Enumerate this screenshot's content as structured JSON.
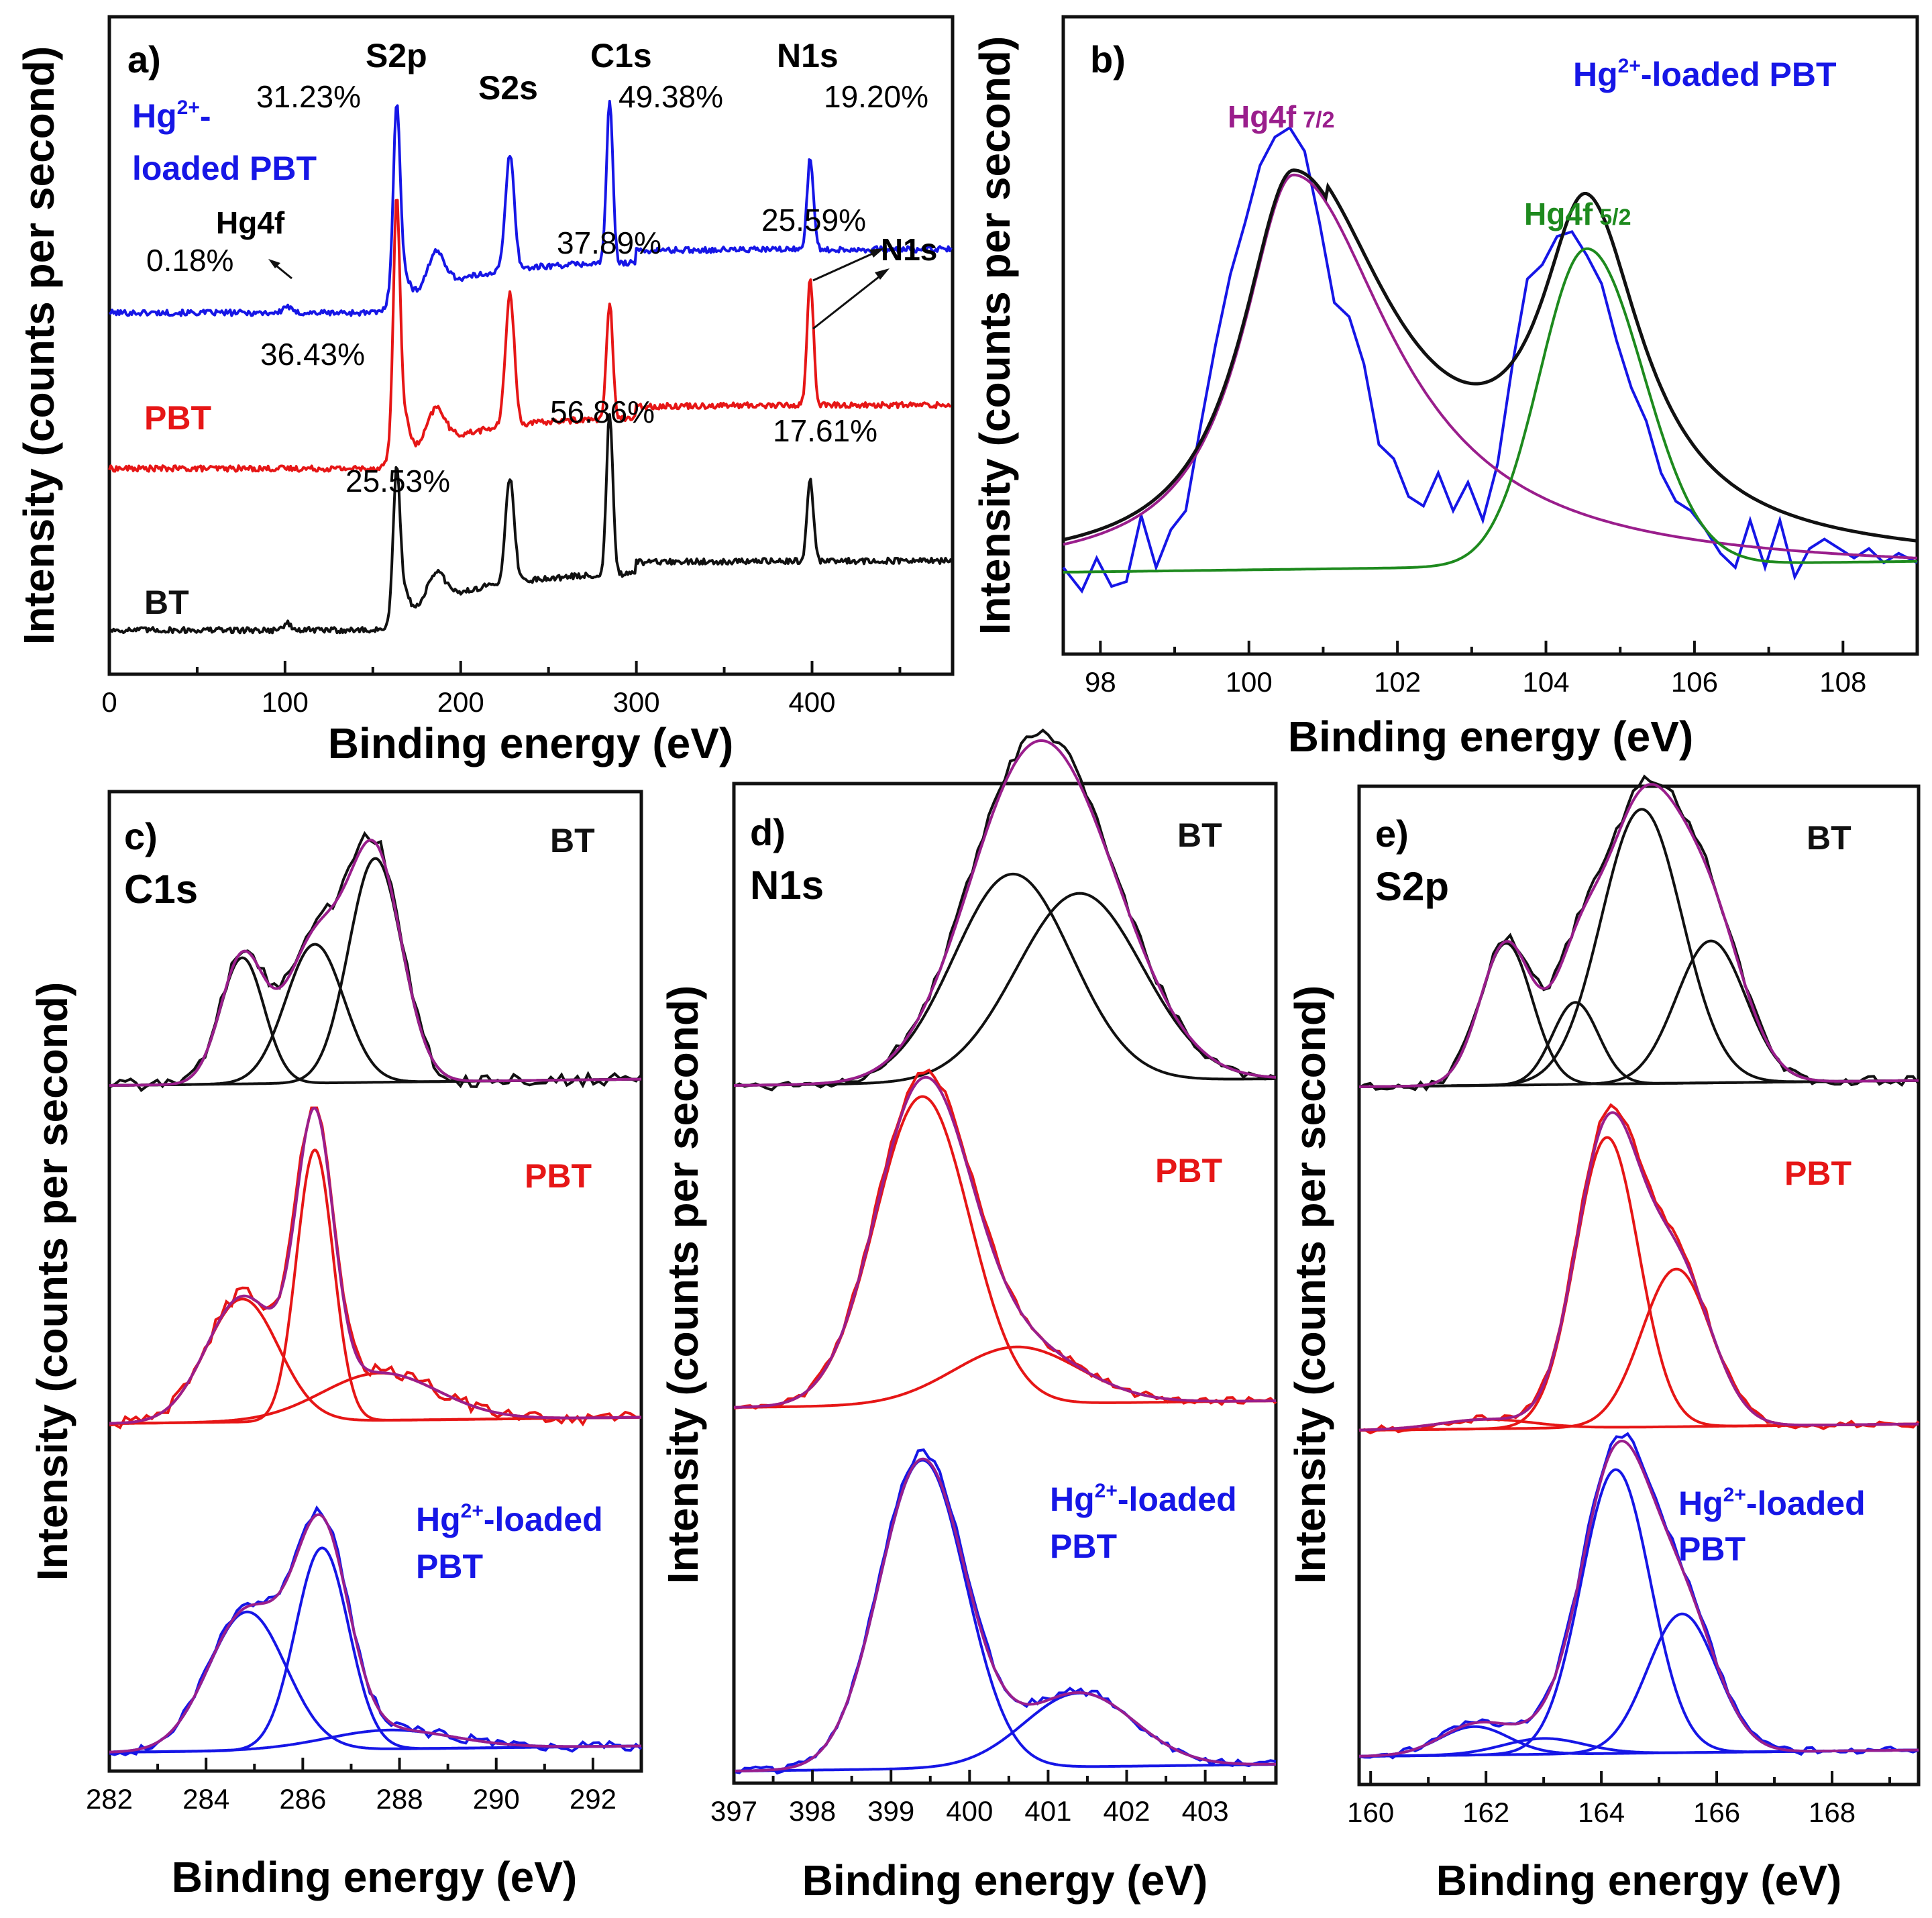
{
  "chart_data": [
    {
      "id": "a",
      "type": "line",
      "panel_label": "a)",
      "xlabel": "Binding energy (eV)",
      "ylabel": "Intensity (counts per second)",
      "xlim": [
        0,
        480
      ],
      "xticks": [
        0,
        100,
        200,
        300,
        400
      ],
      "series": [
        {
          "name": "Hg2+-loaded PBT",
          "label_main": "Hg",
          "label_sup": "2+",
          "label_rest": "-",
          "label_line2": "loaded PBT",
          "color": "#1616e6",
          "base": 0.58,
          "noise": 0.005,
          "step": 0.09,
          "peaks": [
            {
              "x": 163.5,
              "h": 0.28,
              "w": 1.8
            },
            {
              "x": 165,
              "h": 0.08,
              "w": 4
            },
            {
              "x": 186,
              "h": 0.06,
              "w": 5
            },
            {
              "x": 228,
              "h": 0.2,
              "w": 2.5
            },
            {
              "x": 284.8,
              "h": 0.28,
              "w": 1.8
            },
            {
              "x": 399,
              "h": 0.16,
              "w": 1.8
            },
            {
              "x": 101,
              "h": 0.012,
              "w": 2
            }
          ]
        },
        {
          "name": "PBT",
          "color": "#e61616",
          "base": 0.31,
          "noise": 0.005,
          "step": 0.09,
          "peaks": [
            {
              "x": 163.5,
              "h": 0.37,
              "w": 1.8
            },
            {
              "x": 165.5,
              "h": 0.1,
              "w": 4
            },
            {
              "x": 186,
              "h": 0.06,
              "w": 5
            },
            {
              "x": 228,
              "h": 0.23,
              "w": 2.5
            },
            {
              "x": 284.8,
              "h": 0.2,
              "w": 1.8
            },
            {
              "x": 399,
              "h": 0.22,
              "w": 1.8
            }
          ]
        },
        {
          "name": "BT",
          "color": "#111111",
          "base": 0.03,
          "noise": 0.005,
          "step": 0.1,
          "peaks": [
            {
              "x": 163.5,
              "h": 0.22,
              "w": 1.8
            },
            {
              "x": 165.5,
              "h": 0.06,
              "w": 4
            },
            {
              "x": 186,
              "h": 0.05,
              "w": 5
            },
            {
              "x": 228,
              "h": 0.18,
              "w": 2.5
            },
            {
              "x": 284.8,
              "h": 0.28,
              "w": 1.8
            },
            {
              "x": 399,
              "h": 0.14,
              "w": 1.8
            },
            {
              "x": 101,
              "h": 0.012,
              "w": 2
            }
          ]
        }
      ],
      "peak_labels": [
        "S2p",
        "S2s",
        "C1s",
        "N1s"
      ],
      "annotations": [
        {
          "series": "Hg2+-loaded PBT",
          "text": "31.23%",
          "peak": "S2p"
        },
        {
          "series": "Hg2+-loaded PBT",
          "text": "49.38%",
          "peak": "C1s"
        },
        {
          "series": "Hg2+-loaded PBT",
          "text": "19.20%",
          "peak": "N1s"
        },
        {
          "series": "Hg2+-loaded PBT",
          "text": "0.18%",
          "peak": "Hg4f"
        },
        {
          "series": "PBT",
          "text": "36.43%",
          "peak": "S2p"
        },
        {
          "series": "PBT",
          "text": "37.89%",
          "peak": "C1s"
        },
        {
          "series": "PBT",
          "text": "25.59%",
          "peak": "N1s"
        },
        {
          "series": "BT",
          "text": "25.53%",
          "peak": "S2p"
        },
        {
          "series": "BT",
          "text": "56.86%",
          "peak": "C1s"
        },
        {
          "series": "BT",
          "text": "17.61%",
          "peak": "N1s"
        }
      ],
      "callouts": [
        "Hg4f",
        "N1s"
      ]
    },
    {
      "id": "b",
      "type": "line",
      "panel_label": "b)",
      "title_main": "Hg",
      "title_sup": "2+",
      "title_rest": "-loaded PBT",
      "xlabel": "Binding energy (eV)",
      "ylabel": "Intensity (counts per second)",
      "xlim": [
        97.5,
        109
      ],
      "xticks": [
        98,
        100,
        102,
        104,
        106,
        108
      ],
      "fits": [
        {
          "name": "Hg4f 7/2",
          "label_main": "Hg4f",
          "label_sub": "7/2",
          "color": "#9a1e8c",
          "center": 100.6,
          "height": 0.84,
          "width": 0.85,
          "tail": 1.9
        },
        {
          "name": "Hg4f 5/2",
          "label_main": "Hg4f",
          "label_sub": "5/2",
          "color": "#1e8a1e",
          "center": 104.55,
          "height": 0.67,
          "width": 0.75,
          "tail": 1.2
        }
      ],
      "baseline": 0.01,
      "raw": {
        "color": "#1616e6",
        "x": [
          97.5,
          97.75,
          97.95,
          98.15,
          98.35,
          98.55,
          98.75,
          98.95,
          99.15,
          99.35,
          99.55,
          99.75,
          99.95,
          100.15,
          100.35,
          100.55,
          100.75,
          100.95,
          101.15,
          101.35,
          101.55,
          101.75,
          101.95,
          102.15,
          102.35,
          102.55,
          102.75,
          102.95,
          103.15,
          103.35,
          103.55,
          103.75,
          103.95,
          104.15,
          104.35,
          104.55,
          104.75,
          104.95,
          105.15,
          105.35,
          105.55,
          105.75,
          105.95,
          106.15,
          106.35,
          106.55,
          106.75,
          106.95,
          107.15,
          107.35,
          107.55,
          107.75,
          107.95,
          108.15,
          108.35,
          108.55,
          108.75,
          109.0
        ],
        "y": [
          0.02,
          -0.03,
          0.04,
          -0.02,
          -0.01,
          0.13,
          0.02,
          0.1,
          0.14,
          0.32,
          0.49,
          0.64,
          0.75,
          0.87,
          0.93,
          0.95,
          0.9,
          0.75,
          0.58,
          0.55,
          0.45,
          0.28,
          0.25,
          0.17,
          0.15,
          0.22,
          0.14,
          0.2,
          0.12,
          0.24,
          0.45,
          0.63,
          0.66,
          0.72,
          0.73,
          0.68,
          0.62,
          0.5,
          0.4,
          0.33,
          0.22,
          0.16,
          0.14,
          0.1,
          0.05,
          0.02,
          0.12,
          0.02,
          0.12,
          0.0,
          0.06,
          0.08,
          0.06,
          0.04,
          0.06,
          0.03,
          0.05,
          0.03
        ]
      }
    },
    {
      "id": "c",
      "type": "line",
      "panel_label": "c)",
      "element": "C1s",
      "xlabel": "Binding energy (eV)",
      "ylabel": "Intensity (counts per second)",
      "xlim": [
        282,
        293
      ],
      "xticks": [
        282,
        284,
        286,
        288,
        290,
        292
      ],
      "groups": [
        {
          "name": "BT",
          "label": "BT",
          "color": "#111111",
          "envelope": "#9a1e8c",
          "peaks": [
            {
              "c": 284.75,
              "h": 0.4,
              "w": 0.45
            },
            {
              "c": 286.25,
              "h": 0.44,
              "w": 0.6
            },
            {
              "c": 287.5,
              "h": 0.71,
              "w": 0.55
            }
          ],
          "noise": 0.02
        },
        {
          "name": "PBT",
          "label": "PBT",
          "color": "#e61616",
          "envelope": "#9a1e8c",
          "peaks": [
            {
              "c": 284.75,
              "h": 0.39,
              "w": 0.75
            },
            {
              "c": 286.25,
              "h": 0.86,
              "w": 0.38
            },
            {
              "c": 287.6,
              "h": 0.15,
              "w": 1.2
            }
          ],
          "noise": 0.02
        },
        {
          "name": "Hg2+-loaded PBT",
          "label_main": "Hg",
          "label_sup": "2+",
          "label_rest": "-loaded",
          "label_line2": "PBT",
          "color": "#1616e6",
          "envelope": "#9a1e8c",
          "peaks": [
            {
              "c": 284.85,
              "h": 0.44,
              "w": 0.8
            },
            {
              "c": 286.4,
              "h": 0.64,
              "w": 0.55
            },
            {
              "c": 287.8,
              "h": 0.06,
              "w": 1.3
            }
          ],
          "noise": 0.015
        }
      ]
    },
    {
      "id": "d",
      "type": "line",
      "panel_label": "d)",
      "element": "N1s",
      "xlabel": "Binding energy (eV)",
      "ylabel": "Intensity (counts per second)",
      "xlim": [
        397,
        403.9
      ],
      "xticks": [
        397,
        398,
        399,
        400,
        401,
        402,
        403
      ],
      "groups": [
        {
          "name": "BT",
          "label": "BT",
          "color": "#111111",
          "envelope": "#9a1e8c",
          "peaks": [
            {
              "c": 400.55,
              "h": 0.62,
              "w": 0.75
            },
            {
              "c": 401.4,
              "h": 0.56,
              "w": 0.8
            }
          ],
          "noise": 0.015
        },
        {
          "name": "PBT",
          "label": "PBT",
          "color": "#e61616",
          "envelope": "#9a1e8c",
          "peaks": [
            {
              "c": 399.4,
              "h": 0.92,
              "w": 0.6
            },
            {
              "c": 400.6,
              "h": 0.17,
              "w": 0.8
            }
          ],
          "noise": 0.012
        },
        {
          "name": "Hg2+-loaded PBT",
          "label_main": "Hg",
          "label_sup": "2+",
          "label_rest": "-loaded",
          "label_line2": "PBT",
          "color": "#1616e6",
          "envelope": "#9a1e8c",
          "peaks": [
            {
              "c": 399.4,
              "h": 0.92,
              "w": 0.55
            },
            {
              "c": 401.4,
              "h": 0.22,
              "w": 0.7
            }
          ],
          "noise": 0.012
        }
      ]
    },
    {
      "id": "e",
      "type": "line",
      "panel_label": "e)",
      "element": "S2p",
      "xlabel": "Binding energy (eV)",
      "ylabel": "Intensity (counts per second)",
      "xlim": [
        159.8,
        169.5
      ],
      "xticks": [
        160,
        162,
        164,
        166,
        168
      ],
      "groups": [
        {
          "name": "BT",
          "label": "BT",
          "color": "#111111",
          "envelope": "#9a1e8c",
          "peaks": [
            {
              "c": 162.35,
              "h": 0.45,
              "w": 0.45
            },
            {
              "c": 163.55,
              "h": 0.26,
              "w": 0.4
            },
            {
              "c": 164.7,
              "h": 0.87,
              "w": 0.7
            },
            {
              "c": 165.9,
              "h": 0.45,
              "w": 0.6
            }
          ],
          "noise": 0.015
        },
        {
          "name": "PBT",
          "label": "PBT",
          "color": "#e61616",
          "envelope": "#9a1e8c",
          "peaks": [
            {
              "c": 162.0,
              "h": 0.03,
              "w": 0.8
            },
            {
              "c": 164.1,
              "h": 0.92,
              "w": 0.55
            },
            {
              "c": 165.3,
              "h": 0.5,
              "w": 0.6
            }
          ],
          "noise": 0.012
        },
        {
          "name": "Hg2+-loaded PBT",
          "label_main": "Hg",
          "label_sup": "2+",
          "label_rest": "-loaded",
          "label_line2": "PBT",
          "color": "#1616e6",
          "envelope": "#9a1e8c",
          "peaks": [
            {
              "c": 161.8,
              "h": 0.09,
              "w": 0.6
            },
            {
              "c": 163.0,
              "h": 0.05,
              "w": 0.7
            },
            {
              "c": 164.25,
              "h": 0.9,
              "w": 0.6
            },
            {
              "c": 165.4,
              "h": 0.44,
              "w": 0.6
            }
          ],
          "noise": 0.012
        }
      ]
    }
  ]
}
